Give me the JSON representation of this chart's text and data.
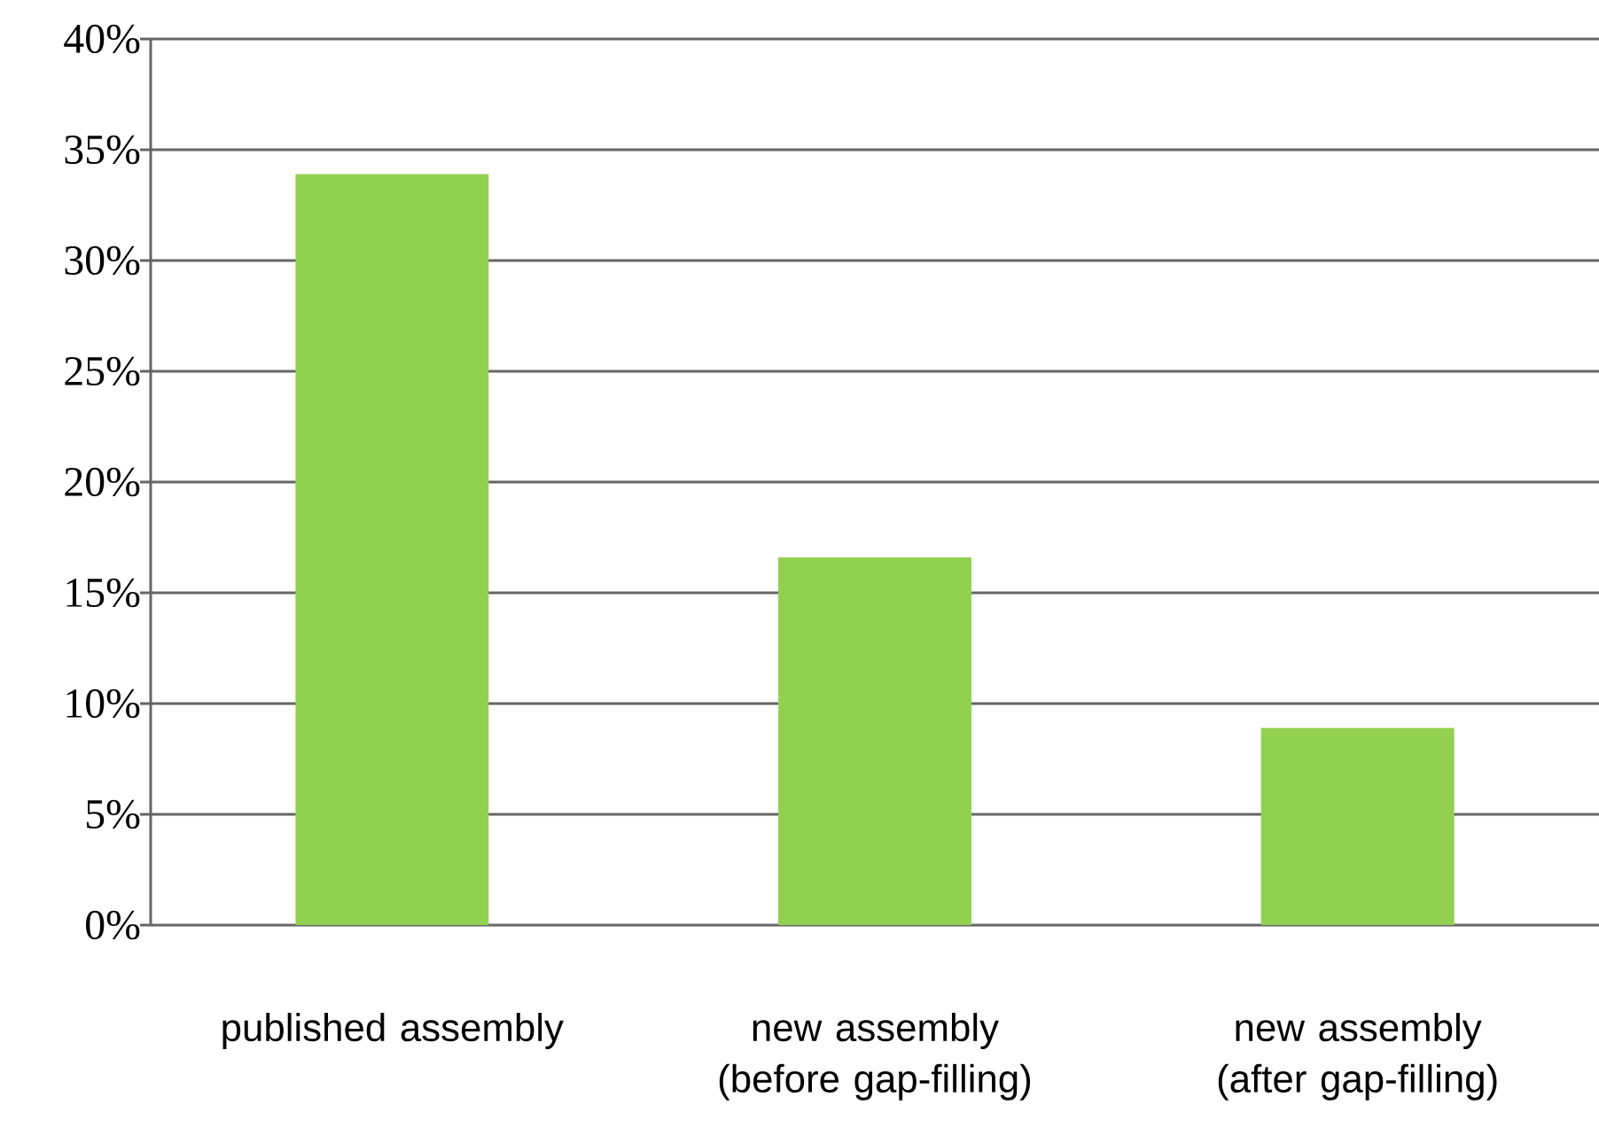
{
  "chart_data": {
    "type": "bar",
    "categories": [
      "published assembly",
      "new assembly (before gap-filling)",
      "new assembly (after gap-filling)"
    ],
    "values": [
      33.9,
      16.6,
      8.9
    ],
    "color": "#92d050",
    "ylim": [
      0,
      40
    ],
    "yticks": [
      {
        "value": 0,
        "label": "0%"
      },
      {
        "value": 5,
        "label": "5%"
      },
      {
        "value": 10,
        "label": "10%"
      },
      {
        "value": 15,
        "label": "15%"
      },
      {
        "value": 20,
        "label": "20%"
      },
      {
        "value": 25,
        "label": "25%"
      },
      {
        "value": 30,
        "label": "30%"
      },
      {
        "value": 35,
        "label": "35%"
      },
      {
        "value": 40,
        "label": "40%"
      }
    ],
    "grid": "y"
  }
}
